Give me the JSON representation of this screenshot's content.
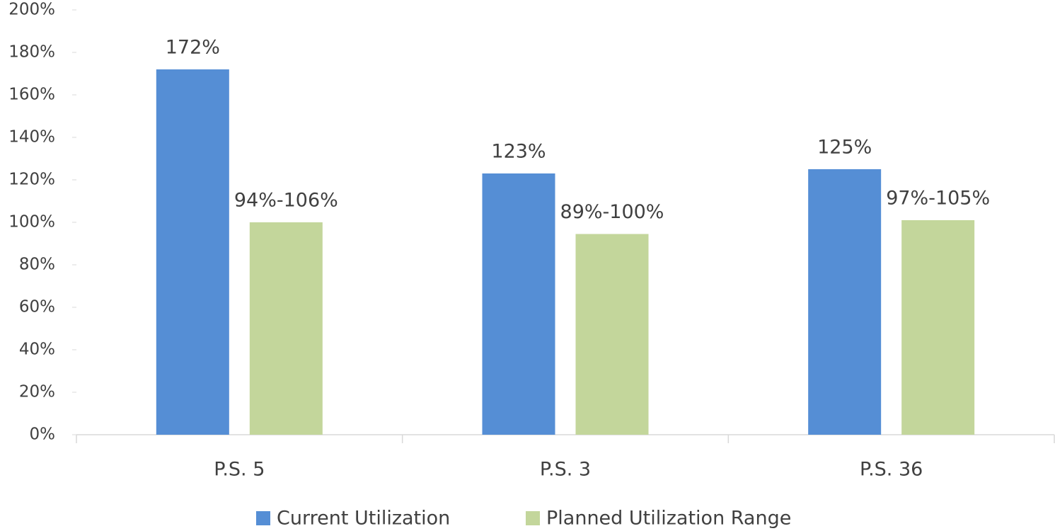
{
  "chart_data": {
    "type": "bar",
    "categories": [
      "P.S. 5",
      "P.S. 3",
      "P.S. 36"
    ],
    "series": [
      {
        "name": "Current Utilization",
        "color": "#558ed5",
        "values": [
          172,
          123,
          125
        ],
        "value_labels": [
          "172%",
          "123%",
          "125%"
        ]
      },
      {
        "name": "Planned Utilization Range",
        "color": "#c3d69b",
        "values": [
          100,
          94.5,
          101
        ],
        "value_labels": [
          "94%-106%",
          "89%-100%",
          "97%-105%"
        ]
      }
    ],
    "ylim": [
      0,
      200
    ],
    "yticks": [
      {
        "value": 0,
        "label": "0%"
      },
      {
        "value": 20,
        "label": "20%"
      },
      {
        "value": 40,
        "label": "40%"
      },
      {
        "value": 60,
        "label": "60%"
      },
      {
        "value": 80,
        "label": "80%"
      },
      {
        "value": 100,
        "label": "100%"
      },
      {
        "value": 120,
        "label": "120%"
      },
      {
        "value": 140,
        "label": "140%"
      },
      {
        "value": 160,
        "label": "160%"
      },
      {
        "value": 180,
        "label": "180%"
      },
      {
        "value": 200,
        "label": "200%"
      }
    ],
    "grid": false,
    "legend": "bottom"
  }
}
